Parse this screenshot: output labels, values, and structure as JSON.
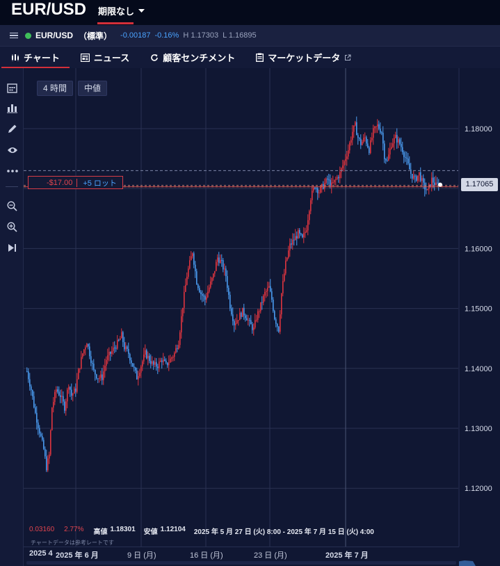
{
  "header": {
    "symbol": "EUR/USD",
    "expiry_label": "期限なし"
  },
  "quote": {
    "symbol": "EUR/USD",
    "type": "（標準）",
    "change": "-0.00187",
    "change_pct": "-0.16%",
    "high": "H 1.17303",
    "low": "L 1.16895"
  },
  "tabs": [
    {
      "label": "チャート",
      "icon": "candlestick-icon",
      "active": true
    },
    {
      "label": "ニュース",
      "icon": "newspaper-icon",
      "active": false
    },
    {
      "label": "顧客センチメント",
      "icon": "refresh-icon",
      "active": false
    },
    {
      "label": "マーケットデータ",
      "icon": "clipboard-icon",
      "active": false
    }
  ],
  "sidebar": {
    "tools": [
      "calendar-icon",
      "bar-chart-icon",
      "pencil-icon",
      "eye-icon",
      "more-icon",
      "zoom-out-icon",
      "zoom-in-icon",
      "play-icon"
    ]
  },
  "chart": {
    "timeframe": "4 時間",
    "price_type": "中値",
    "current_price": "1.17065",
    "position": {
      "pnl": "-$17.00",
      "lots": "+5 ロット"
    },
    "y_labels": [
      "1.18000",
      "1.17000",
      "1.16000",
      "1.15000",
      "1.14000",
      "1.13000",
      "1.12000"
    ],
    "stats": {
      "range": "0.03160",
      "range_pct": "2.77%",
      "high_label": "高値",
      "high": "1.18301",
      "low_label": "安値",
      "low": "1.12104",
      "period": "2025 年 5 月 27 日 (火) 8:00 - 2025 年 7 月 15 日 (火) 4:00"
    },
    "disclaimer": "チャートデータは参考レートです",
    "time_labels": [
      "2025 4",
      "2025 年 6 月",
      "9 日 (月)",
      "16 日 (月)",
      "23 日 (月)",
      "2025 年 7 月"
    ],
    "colors": {
      "up": "#e0353f",
      "down": "#4a9bf0",
      "background": "#101733",
      "grid": "#2a3253"
    }
  },
  "chart_data": {
    "type": "candlestick",
    "ylim": [
      1.115,
      1.1855
    ],
    "y_ticks": [
      1.12,
      1.13,
      1.14,
      1.15,
      1.16,
      1.17,
      1.18
    ],
    "x_ticks": [
      "2025 4",
      "2025 年 6 月",
      "9 日 (月)",
      "16 日 (月)",
      "23 日 (月)",
      "2025 年 7 月"
    ],
    "high": 1.18301,
    "low": 1.12104,
    "last": 1.17065,
    "position_level": 1.1703,
    "close_path": [
      [
        0,
        1.1395
      ],
      [
        6,
        1.1365
      ],
      [
        12,
        1.1325
      ],
      [
        18,
        1.1295
      ],
      [
        24,
        1.1265
      ],
      [
        28,
        1.1235
      ],
      [
        32,
        1.1255
      ],
      [
        36,
        1.1335
      ],
      [
        42,
        1.1365
      ],
      [
        48,
        1.1355
      ],
      [
        54,
        1.1335
      ],
      [
        60,
        1.1375
      ],
      [
        64,
        1.1355
      ],
      [
        70,
        1.1365
      ],
      [
        74,
        1.1395
      ],
      [
        80,
        1.1425
      ],
      [
        86,
        1.1445
      ],
      [
        92,
        1.1415
      ],
      [
        96,
        1.1395
      ],
      [
        102,
        1.1385
      ],
      [
        108,
        1.1385
      ],
      [
        114,
        1.1415
      ],
      [
        120,
        1.1425
      ],
      [
        126,
        1.1435
      ],
      [
        132,
        1.1445
      ],
      [
        136,
        1.1455
      ],
      [
        140,
        1.1435
      ],
      [
        146,
        1.1425
      ],
      [
        152,
        1.1405
      ],
      [
        158,
        1.1385
      ],
      [
        164,
        1.1405
      ],
      [
        170,
        1.1425
      ],
      [
        176,
        1.1415
      ],
      [
        182,
        1.1405
      ],
      [
        188,
        1.1405
      ],
      [
        194,
        1.1415
      ],
      [
        200,
        1.1405
      ],
      [
        206,
        1.1415
      ],
      [
        212,
        1.1425
      ],
      [
        218,
        1.1445
      ],
      [
        224,
        1.1505
      ],
      [
        230,
        1.1555
      ],
      [
        234,
        1.1575
      ],
      [
        238,
        1.1595
      ],
      [
        244,
        1.1545
      ],
      [
        250,
        1.1525
      ],
      [
        256,
        1.1515
      ],
      [
        262,
        1.1535
      ],
      [
        268,
        1.1555
      ],
      [
        274,
        1.1585
      ],
      [
        280,
        1.1575
      ],
      [
        286,
        1.1555
      ],
      [
        292,
        1.1505
      ],
      [
        298,
        1.1475
      ],
      [
        304,
        1.1485
      ],
      [
        310,
        1.1495
      ],
      [
        316,
        1.1485
      ],
      [
        320,
        1.1475
      ],
      [
        326,
        1.1465
      ],
      [
        330,
        1.1485
      ],
      [
        336,
        1.1505
      ],
      [
        342,
        1.1525
      ],
      [
        348,
        1.1535
      ],
      [
        352,
        1.1515
      ],
      [
        356,
        1.1485
      ],
      [
        362,
        1.1465
      ],
      [
        366,
        1.1525
      ],
      [
        372,
        1.1575
      ],
      [
        378,
        1.1605
      ],
      [
        384,
        1.1615
      ],
      [
        390,
        1.1625
      ],
      [
        396,
        1.1615
      ],
      [
        402,
        1.1635
      ],
      [
        408,
        1.1685
      ],
      [
        414,
        1.1705
      ],
      [
        420,
        1.1695
      ],
      [
        426,
        1.1705
      ],
      [
        432,
        1.1715
      ],
      [
        438,
        1.1705
      ],
      [
        444,
        1.1715
      ],
      [
        450,
        1.1725
      ],
      [
        456,
        1.1745
      ],
      [
        462,
        1.1765
      ],
      [
        468,
        1.1795
      ],
      [
        472,
        1.1805
      ],
      [
        476,
        1.1785
      ],
      [
        480,
        1.1775
      ],
      [
        486,
        1.1785
      ],
      [
        492,
        1.1765
      ],
      [
        498,
        1.1795
      ],
      [
        504,
        1.1805
      ],
      [
        510,
        1.1795
      ],
      [
        514,
        1.1755
      ],
      [
        518,
        1.1745
      ],
      [
        524,
        1.1775
      ],
      [
        530,
        1.1785
      ],
      [
        536,
        1.1775
      ],
      [
        540,
        1.1765
      ],
      [
        546,
        1.1745
      ],
      [
        552,
        1.1725
      ],
      [
        558,
        1.1715
      ],
      [
        564,
        1.1725
      ],
      [
        570,
        1.1705
      ],
      [
        576,
        1.1695
      ],
      [
        582,
        1.1715
      ],
      [
        588,
        1.1705
      ],
      [
        592,
        1.1707
      ]
    ]
  }
}
